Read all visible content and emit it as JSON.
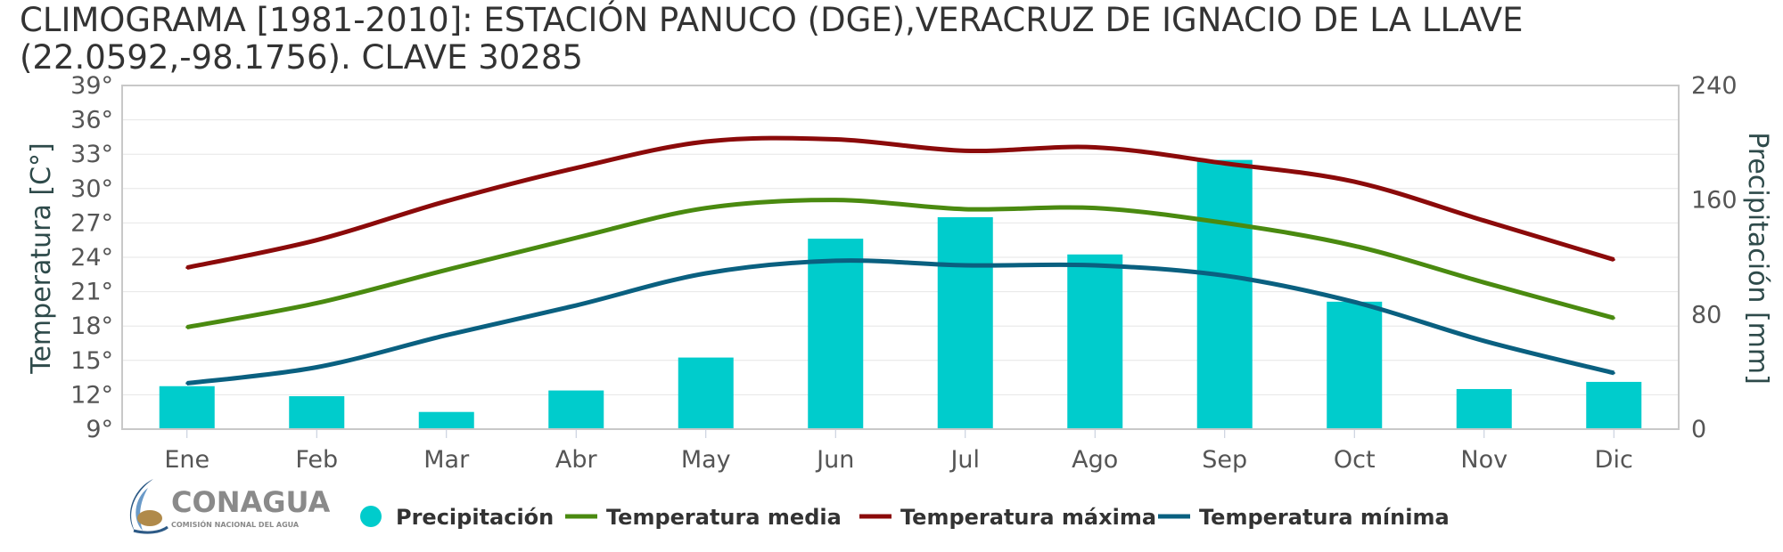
{
  "chart_data": {
    "type": "bar",
    "title": "CLIMOGRAMA [1981-2010]: ESTACIÓN PANUCO (DGE),VERACRUZ DE IGNACIO DE LA LLAVE (22.0592,-98.1756). CLAVE 30285",
    "categories": [
      "Ene",
      "Feb",
      "Mar",
      "Abr",
      "May",
      "Jun",
      "Jul",
      "Ago",
      "Sep",
      "Oct",
      "Nov",
      "Dic"
    ],
    "y_left": {
      "label": "Temperatura [C°]",
      "range": [
        9,
        39
      ],
      "ticks": [
        "39°",
        "36°",
        "33°",
        "30°",
        "27°",
        "24°",
        "21°",
        "18°",
        "15°",
        "12°",
        "9°"
      ]
    },
    "y_right": {
      "label": "Precipitación [mm]",
      "range": [
        0,
        240
      ],
      "ticks": [
        "240",
        "160",
        "80",
        "0"
      ]
    },
    "series": [
      {
        "name": "Precipitación",
        "type": "bar",
        "axis": "right",
        "color": "#00cccc",
        "values": [
          30,
          23,
          12,
          27,
          50,
          133,
          148,
          122,
          188,
          89,
          28,
          33
        ]
      },
      {
        "name": "Temperatura media",
        "type": "line",
        "axis": "left",
        "color": "#4a8a10",
        "values": [
          17.9,
          20.0,
          22.9,
          25.7,
          28.3,
          29.0,
          28.2,
          28.3,
          27.0,
          25.0,
          21.8,
          18.7
        ]
      },
      {
        "name": "Temperatura máxima",
        "type": "line",
        "axis": "left",
        "color": "#8b0a0a",
        "values": [
          23.1,
          25.5,
          28.9,
          31.8,
          34.1,
          34.3,
          33.3,
          33.6,
          32.2,
          30.6,
          27.2,
          23.8
        ]
      },
      {
        "name": "Temperatura mínima",
        "type": "line",
        "axis": "left",
        "color": "#0a6080",
        "values": [
          13.0,
          14.4,
          17.2,
          19.8,
          22.6,
          23.7,
          23.3,
          23.3,
          22.4,
          20.1,
          16.7,
          13.9
        ]
      }
    ],
    "grid": true,
    "legend_position": "bottom"
  },
  "logo": {
    "name": "CONAGUA",
    "subtitle": "COMISIÓN NACIONAL DEL AGUA"
  }
}
